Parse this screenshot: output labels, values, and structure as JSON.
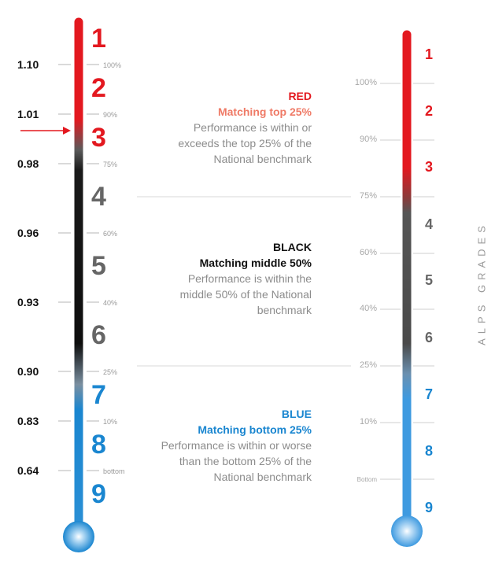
{
  "colors": {
    "red": "#e3181f",
    "black": "#0e0e0e",
    "blue": "#1a86d0",
    "grade_grey": "#666666",
    "salmon": "#ef7a66",
    "muted_grey": "#8c8c8c"
  },
  "left_scale": {
    "values": [
      "1.10",
      "1.01",
      "0.98",
      "0.96",
      "0.93",
      "0.90",
      "0.83",
      "0.64"
    ],
    "percentiles": [
      "100%",
      "90%",
      "75%",
      "60%",
      "40%",
      "25%",
      "10%",
      "bottom"
    ],
    "grades": [
      "1",
      "2",
      "3",
      "4",
      "5",
      "6",
      "7",
      "8",
      "9"
    ],
    "indicator_icon": "red-arrow-icon",
    "indicated_grade": "3"
  },
  "legend": {
    "red": {
      "title": "RED",
      "subtitle": "Matching top 25%",
      "desc": [
        "Performance is within or",
        "exceeds the top 25% of the",
        "National benchmark"
      ]
    },
    "black": {
      "title": "BLACK",
      "subtitle": "Matching middle 50%",
      "desc": [
        "Performance is within the",
        "middle 50% of the National",
        "benchmark"
      ]
    },
    "blue": {
      "title": "BLUE",
      "subtitle": "Matching bottom 25%",
      "desc": [
        "Performance is within or worse",
        "than the bottom 25% of the",
        "National benchmark"
      ]
    }
  },
  "right_scale": {
    "percentiles": [
      "100%",
      "90%",
      "75%",
      "60%",
      "40%",
      "25%",
      "10%",
      "Bottom"
    ],
    "grades": [
      "1",
      "2",
      "3",
      "4",
      "5",
      "6",
      "7",
      "8",
      "9"
    ],
    "axis_label": "ALPS GRADES"
  }
}
